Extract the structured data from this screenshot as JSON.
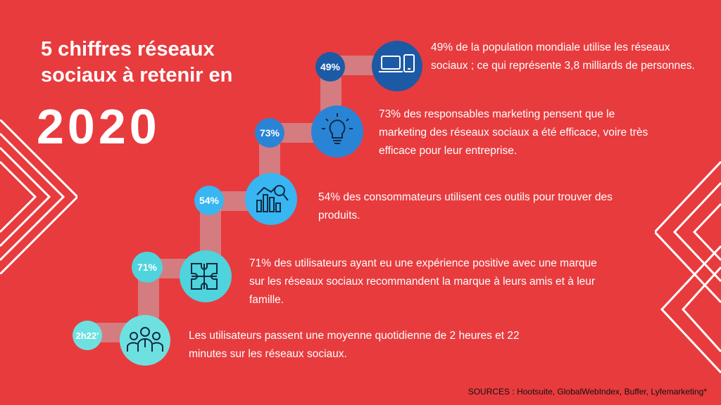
{
  "title": "5 chiffres réseaux sociaux à retenir en",
  "year": "2020",
  "stats": [
    {
      "value": "49%",
      "text": "49% de la population mondiale utilise les réseaux sociaux ; ce qui représente 3,8 milliards de personnes.",
      "icon": "devices-icon",
      "color": "#1c5aa6"
    },
    {
      "value": "73%",
      "text": "73% des responsables marketing pensent que le marketing des réseaux sociaux a été efficace, voire très efficace pour leur entreprise.",
      "icon": "lightbulb-icon",
      "color": "#2a84d6"
    },
    {
      "value": "54%",
      "text": "54% des consommateurs utilisent ces outils pour trouver des produits.",
      "icon": "bar-chart-magnifier-icon",
      "color": "#37b6f2"
    },
    {
      "value": "71%",
      "text": "71% des utilisateurs ayant eu une expérience positive avec une marque sur les réseaux sociaux recommandent la marque à leurs amis et à leur famille.",
      "icon": "puzzle-icon",
      "color": "#4fd3dc"
    },
    {
      "value": "2h22'",
      "text": "Les utilisateurs passent une moyenne quotidienne de 2 heures et 22 minutes sur les réseaux sociaux.",
      "icon": "people-icon",
      "color": "#6fe0e0"
    }
  ],
  "sources": "SOURCES : Hootsuite, GlobalWebIndex, Buffer, Lyfemarketing*"
}
